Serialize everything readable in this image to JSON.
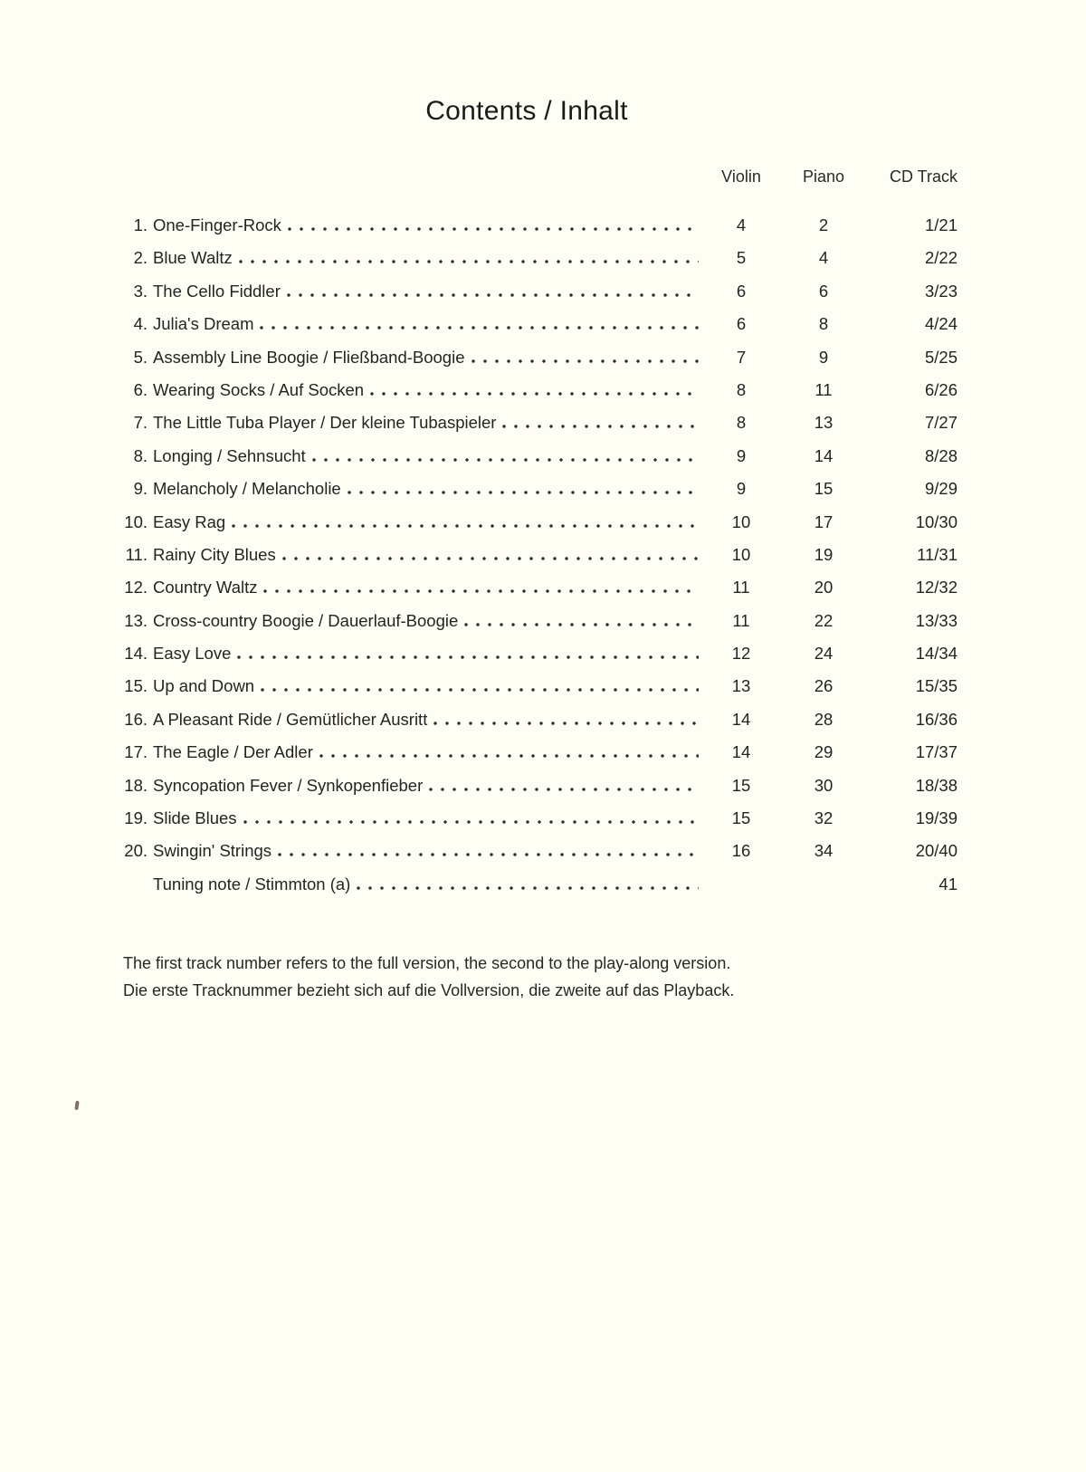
{
  "page": {
    "title": "Contents / Inhalt",
    "background_color": "#fffef4",
    "text_color": "#242424"
  },
  "table": {
    "headers": {
      "violin": "Violin",
      "piano": "Piano",
      "cd_track": "CD Track"
    },
    "rows": [
      {
        "num": "1.",
        "title": "One-Finger-Rock",
        "violin": "4",
        "piano": "2",
        "cd": "1/21"
      },
      {
        "num": "2.",
        "title": "Blue Waltz",
        "violin": "5",
        "piano": "4",
        "cd": "2/22"
      },
      {
        "num": "3.",
        "title": "The Cello Fiddler",
        "violin": "6",
        "piano": "6",
        "cd": "3/23"
      },
      {
        "num": "4.",
        "title": "Julia's Dream",
        "violin": "6",
        "piano": "8",
        "cd": "4/24"
      },
      {
        "num": "5.",
        "title": "Assembly Line Boogie / Fließband-Boogie",
        "violin": "7",
        "piano": "9",
        "cd": "5/25"
      },
      {
        "num": "6.",
        "title": "Wearing Socks / Auf Socken",
        "violin": "8",
        "piano": "11",
        "cd": "6/26"
      },
      {
        "num": "7.",
        "title": "The Little Tuba Player / Der kleine Tubaspieler",
        "violin": "8",
        "piano": "13",
        "cd": "7/27"
      },
      {
        "num": "8.",
        "title": "Longing / Sehnsucht",
        "violin": "9",
        "piano": "14",
        "cd": "8/28"
      },
      {
        "num": "9.",
        "title": "Melancholy / Melancholie",
        "violin": "9",
        "piano": "15",
        "cd": "9/29"
      },
      {
        "num": "10.",
        "title": "Easy Rag",
        "violin": "10",
        "piano": "17",
        "cd": "10/30"
      },
      {
        "num": "11.",
        "title": "Rainy City Blues",
        "violin": "10",
        "piano": "19",
        "cd": "11/31"
      },
      {
        "num": "12.",
        "title": "Country Waltz",
        "violin": "11",
        "piano": "20",
        "cd": "12/32"
      },
      {
        "num": "13.",
        "title": "Cross-country Boogie / Dauerlauf-Boogie",
        "violin": "11",
        "piano": "22",
        "cd": "13/33"
      },
      {
        "num": "14.",
        "title": "Easy Love",
        "violin": "12",
        "piano": "24",
        "cd": "14/34"
      },
      {
        "num": "15.",
        "title": "Up and Down",
        "violin": "13",
        "piano": "26",
        "cd": "15/35"
      },
      {
        "num": "16.",
        "title": "A Pleasant Ride / Gemütlicher Ausritt",
        "violin": "14",
        "piano": "28",
        "cd": "16/36"
      },
      {
        "num": "17.",
        "title": "The Eagle / Der Adler",
        "violin": "14",
        "piano": "29",
        "cd": "17/37"
      },
      {
        "num": "18.",
        "title": "Syncopation Fever / Synkopenfieber",
        "violin": "15",
        "piano": "30",
        "cd": "18/38"
      },
      {
        "num": "19.",
        "title": "Slide Blues",
        "violin": "15",
        "piano": "32",
        "cd": "19/39"
      },
      {
        "num": "20.",
        "title": "Swingin' Strings",
        "violin": "16",
        "piano": "34",
        "cd": "20/40"
      },
      {
        "num": "",
        "title": "Tuning note / Stimmton (a)",
        "violin": "",
        "piano": "",
        "cd": "41"
      }
    ]
  },
  "footnote": {
    "line1": "The first track number refers to the full version, the second to the play-along version.",
    "line2": "Die erste Tracknummer bezieht sich auf die Vollversion, die zweite auf das Playback."
  }
}
